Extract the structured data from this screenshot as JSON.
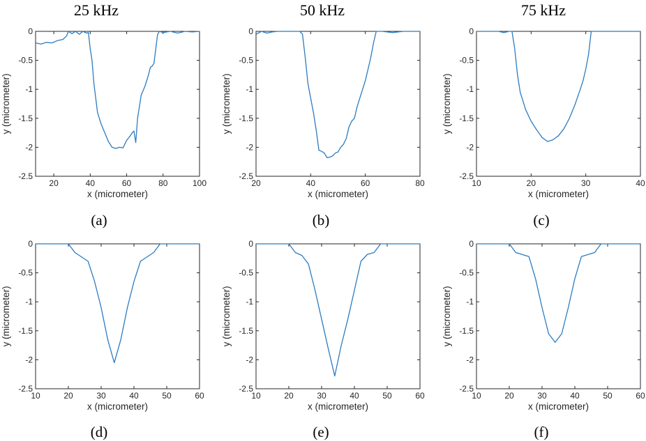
{
  "column_titles": [
    "25 kHz",
    "50 kHz",
    "75 kHz"
  ],
  "series_color": "#2c7bbf",
  "chart_data": [
    {
      "type": "line",
      "panel": "(a)",
      "xlabel": "x (micrometer)",
      "ylabel": "y (micrometer)",
      "xlim": [
        10,
        100
      ],
      "ylim": [
        -2.5,
        0
      ],
      "xticks": [
        "20",
        "40",
        "60",
        "80",
        "100"
      ],
      "yticks": [
        "0",
        "-0.5",
        "-1",
        "-1.5",
        "-2",
        "-2.5"
      ],
      "x": [
        10,
        13,
        16,
        19,
        22,
        25,
        27,
        28,
        30,
        32,
        34,
        36,
        38,
        39,
        40,
        41,
        42,
        44,
        46,
        48,
        50,
        52,
        54,
        56,
        58,
        60,
        62,
        63,
        64,
        65,
        66,
        67,
        68,
        70,
        72,
        73,
        74,
        75,
        76,
        77,
        78,
        80,
        84,
        88,
        92,
        96,
        100
      ],
      "y": [
        -0.2,
        -0.22,
        -0.19,
        -0.2,
        -0.16,
        -0.14,
        -0.08,
        0,
        -0.04,
        0,
        -0.05,
        0,
        -0.03,
        -0.02,
        -0.3,
        -0.5,
        -0.9,
        -1.4,
        -1.6,
        -1.75,
        -1.9,
        -2.0,
        -2.02,
        -2.0,
        -2.01,
        -1.88,
        -1.8,
        -1.75,
        -1.72,
        -1.92,
        -1.5,
        -1.3,
        -1.1,
        -0.95,
        -0.75,
        -0.62,
        -0.6,
        -0.55,
        -0.3,
        -0.05,
        0,
        -0.02,
        0,
        -0.03,
        0,
        -0.01,
        0
      ]
    },
    {
      "type": "line",
      "panel": "(b)",
      "xlabel": "x (micrometer)",
      "ylabel": "y (micrometer)",
      "xlim": [
        20,
        80
      ],
      "ylim": [
        -2.5,
        0
      ],
      "xticks": [
        "20",
        "40",
        "60",
        "80"
      ],
      "yticks": [
        "0",
        "-0.5",
        "-1",
        "-1.5",
        "-2",
        "-2.5"
      ],
      "x": [
        20,
        22,
        24,
        26,
        28,
        30,
        34,
        36,
        37,
        38,
        39,
        40,
        41,
        42,
        43,
        44,
        45,
        46,
        47,
        48,
        49,
        50,
        51,
        52,
        53,
        54,
        55,
        56,
        57,
        58,
        59,
        60,
        61,
        62,
        63,
        64,
        66,
        70,
        74,
        78,
        80
      ],
      "y": [
        -0.05,
        0,
        -0.03,
        -0.01,
        0,
        0,
        0,
        0,
        -0.05,
        -0.45,
        -0.9,
        -1.15,
        -1.4,
        -1.7,
        -2.05,
        -2.07,
        -2.1,
        -2.18,
        -2.17,
        -2.15,
        -2.1,
        -2.08,
        -2.0,
        -1.95,
        -1.85,
        -1.65,
        -1.55,
        -1.5,
        -1.3,
        -1.15,
        -1.0,
        -0.85,
        -0.65,
        -0.45,
        -0.2,
        0,
        0,
        -0.02,
        0,
        0,
        0
      ]
    },
    {
      "type": "line",
      "panel": "(c)",
      "xlabel": "x (micrometer)",
      "ylabel": "y (micrometer)",
      "xlim": [
        10,
        40
      ],
      "ylim": [
        -2.5,
        0
      ],
      "xticks": [
        "10",
        "20",
        "30",
        "40"
      ],
      "yticks": [
        "0",
        "-0.5",
        "-1",
        "-1.5",
        "-2",
        "-2.5"
      ],
      "x": [
        10,
        12,
        14,
        15,
        16,
        16.5,
        17,
        17.5,
        18,
        19,
        20,
        21,
        22,
        23,
        24,
        25,
        26,
        27,
        28,
        29,
        29.5,
        30,
        30.5,
        31,
        32,
        34,
        36,
        38,
        40
      ],
      "y": [
        0,
        0,
        0,
        -0.02,
        0,
        0,
        -0.3,
        -0.75,
        -1.05,
        -1.35,
        -1.55,
        -1.7,
        -1.83,
        -1.9,
        -1.87,
        -1.8,
        -1.68,
        -1.5,
        -1.27,
        -1.0,
        -0.85,
        -0.65,
        -0.4,
        0,
        0,
        0,
        0,
        0,
        0
      ]
    },
    {
      "type": "line",
      "panel": "(d)",
      "xlabel": "x (micrometer)",
      "ylabel": "y (micrometer)",
      "xlim": [
        10,
        60
      ],
      "ylim": [
        -2.5,
        0
      ],
      "xticks": [
        "10",
        "20",
        "30",
        "40",
        "50",
        "60"
      ],
      "yticks": [
        "0",
        "-0.5",
        "-1",
        "-1.5",
        "-2",
        "-2.5"
      ],
      "x": [
        10,
        20,
        22,
        26,
        28,
        30,
        32,
        34,
        36,
        38,
        40,
        42,
        46,
        48,
        60
      ],
      "y": [
        0,
        0,
        -0.15,
        -0.3,
        -0.65,
        -1.1,
        -1.65,
        -2.05,
        -1.65,
        -1.1,
        -0.65,
        -0.3,
        -0.15,
        0,
        0
      ]
    },
    {
      "type": "line",
      "panel": "(e)",
      "xlabel": "x (micrometer)",
      "ylabel": "y (micrometer)",
      "xlim": [
        10,
        60
      ],
      "ylim": [
        -2.5,
        0
      ],
      "xticks": [
        "10",
        "20",
        "30",
        "40",
        "50",
        "60"
      ],
      "yticks": [
        "0",
        "-0.5",
        "-1",
        "-1.5",
        "-2",
        "-2.5"
      ],
      "x": [
        10,
        20,
        22,
        24,
        26,
        28,
        30,
        32,
        34,
        36,
        38,
        40,
        42,
        44,
        46,
        48,
        60
      ],
      "y": [
        0,
        0,
        -0.15,
        -0.2,
        -0.35,
        -0.8,
        -1.3,
        -1.8,
        -2.28,
        -1.75,
        -1.3,
        -0.8,
        -0.3,
        -0.18,
        -0.15,
        0,
        0
      ]
    },
    {
      "type": "line",
      "panel": "(f)",
      "xlabel": "x (micrometer)",
      "ylabel": "y (micrometer)",
      "xlim": [
        10,
        60
      ],
      "ylim": [
        -2.5,
        0
      ],
      "xticks": [
        "10",
        "20",
        "30",
        "40",
        "50",
        "60"
      ],
      "yticks": [
        "0",
        "-0.5",
        "-1",
        "-1.5",
        "-2",
        "-2.5"
      ],
      "x": [
        10,
        20,
        22,
        26,
        28,
        30,
        32,
        34,
        36,
        38,
        40,
        42,
        46,
        48,
        60
      ],
      "y": [
        0,
        0,
        -0.15,
        -0.22,
        -0.6,
        -1.1,
        -1.55,
        -1.7,
        -1.55,
        -1.1,
        -0.6,
        -0.22,
        -0.15,
        0,
        0
      ]
    }
  ]
}
